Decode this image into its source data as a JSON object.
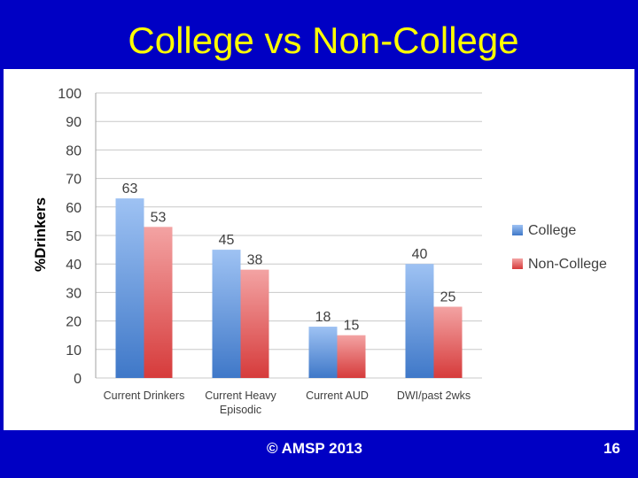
{
  "slide": {
    "title": "College vs Non-College",
    "footer": "© AMSP 2013",
    "page_number": "16"
  },
  "chart_data": {
    "type": "bar",
    "title": "",
    "xlabel": "",
    "ylabel": "%Drinkers",
    "ylim": [
      0,
      100
    ],
    "yticks": [
      0,
      10,
      20,
      30,
      40,
      50,
      60,
      70,
      80,
      90,
      100
    ],
    "grid": true,
    "legend_position": "right",
    "categories": [
      "Current Drinkers",
      "Current Heavy Episodic",
      "Current AUD",
      "DWI/past 2wks"
    ],
    "series": [
      {
        "name": "College",
        "values": [
          63,
          45,
          18,
          40
        ],
        "color": "#5b8fd6"
      },
      {
        "name": "Non-College",
        "values": [
          53,
          38,
          15,
          25
        ],
        "color": "#e04545"
      }
    ]
  }
}
